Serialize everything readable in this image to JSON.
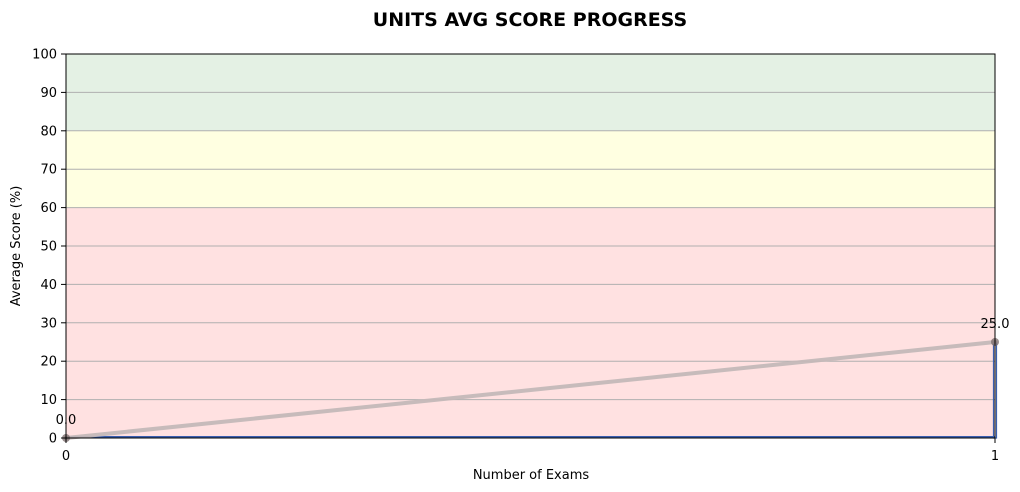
{
  "chart_data": {
    "type": "line",
    "title": "UNITS AVG SCORE PROGRESS",
    "xlabel": "Number of Exams",
    "ylabel": "Average Score (%)",
    "xlim": [
      0,
      1
    ],
    "ylim": [
      0,
      100
    ],
    "xticks": [
      "0",
      "1"
    ],
    "yticks": [
      "0",
      "10",
      "20",
      "30",
      "40",
      "50",
      "60",
      "70",
      "80",
      "90",
      "100"
    ],
    "grid": "horizontal",
    "bands": [
      {
        "from": 0,
        "to": 60,
        "color": "#ffe1e1"
      },
      {
        "from": 60,
        "to": 80,
        "color": "#ffffe1"
      },
      {
        "from": 80,
        "to": 100,
        "color": "#e4f1e4"
      }
    ],
    "series": [
      {
        "x": [
          0,
          1
        ],
        "values": [
          0.0,
          25.0
        ],
        "labels": [
          "0.0",
          "25.0"
        ],
        "color": "#bfbfbf"
      }
    ],
    "colors": {
      "line": "#c4b8b8",
      "marker": "#7a6a6a",
      "bars": "#3a5fb0",
      "grid": "#b0b0b0"
    }
  }
}
